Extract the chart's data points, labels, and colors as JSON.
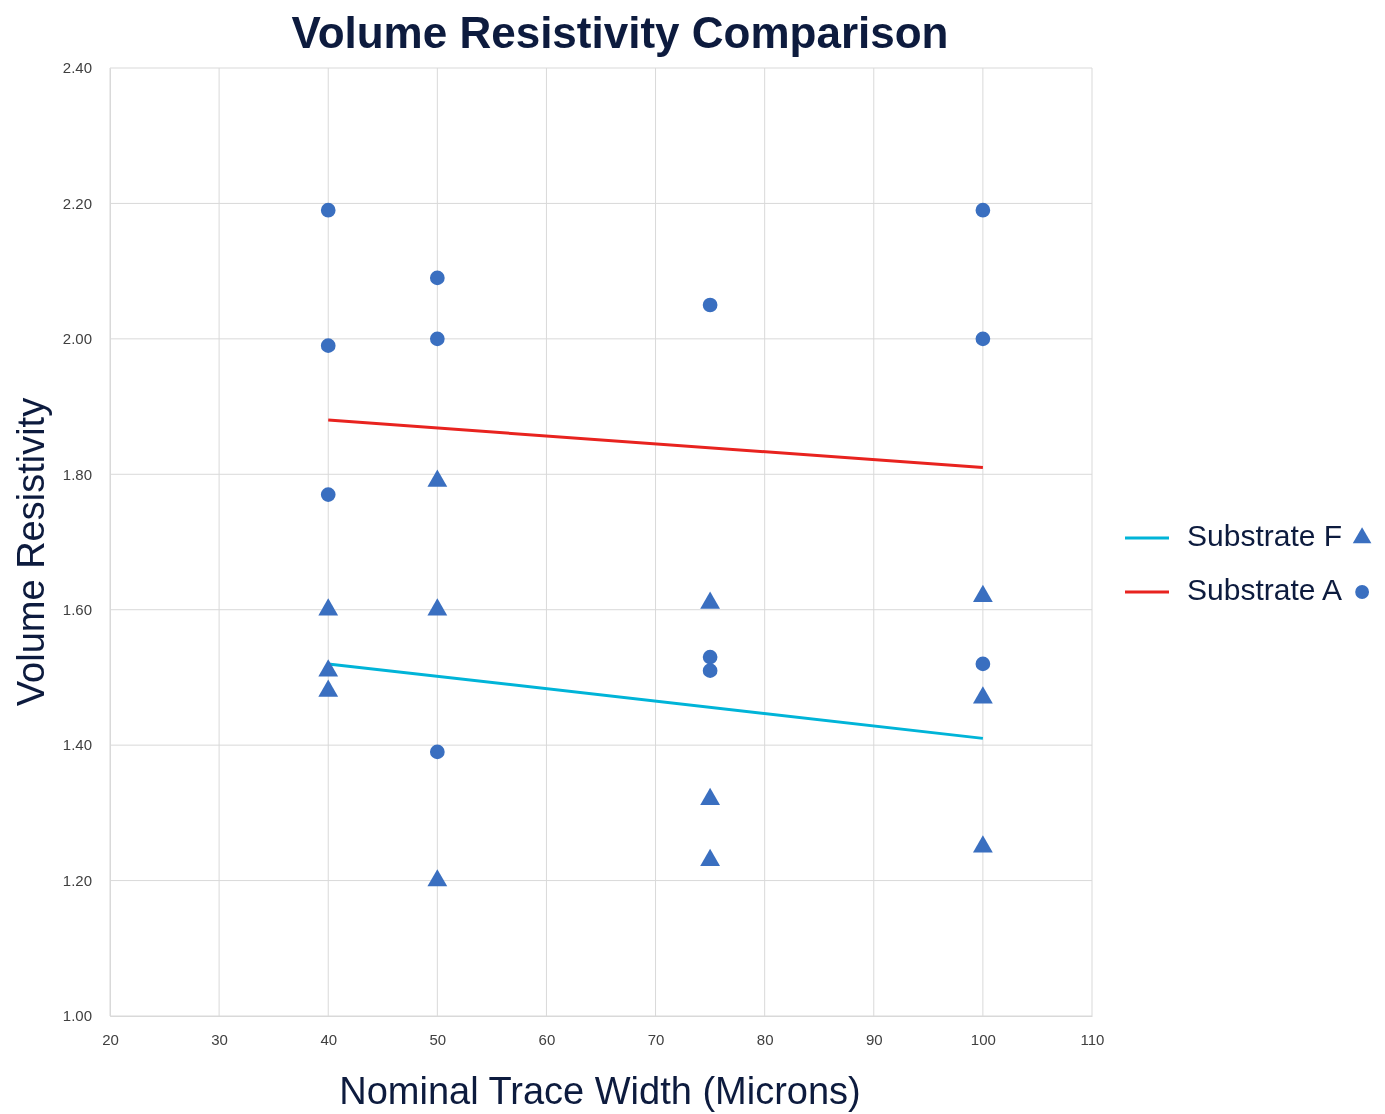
{
  "chart_data": {
    "type": "scatter",
    "title": "Volume Resistivity Comparison",
    "xlabel": "Nominal Trace Width (Microns)",
    "ylabel": "Volume Resistivity",
    "xlim": [
      20,
      110
    ],
    "xticks": [
      20,
      30,
      40,
      50,
      60,
      70,
      80,
      90,
      100,
      110
    ],
    "ylim": [
      1,
      2.4
    ],
    "yticks": [
      {
        "value": 1,
        "label": "1.00"
      },
      {
        "value": 1.2,
        "label": "1.20"
      },
      {
        "value": 1.4,
        "label": "1.40"
      },
      {
        "value": 1.6,
        "label": "1.60"
      },
      {
        "value": 1.8,
        "label": "1.80"
      },
      {
        "value": 2,
        "label": "2.00"
      },
      {
        "value": 2.2,
        "label": "2.20"
      },
      {
        "value": 2.4,
        "label": "2.40"
      }
    ],
    "grid": true,
    "legend": "right",
    "series": [
      {
        "name": "Substrate F",
        "type": "line",
        "color": "#00b4d8",
        "x": [
          40,
          100
        ],
        "values": [
          1.52,
          1.41
        ]
      },
      {
        "marker": "triangle",
        "color": "#3a6fc0",
        "x": [
          40,
          40,
          40,
          50,
          50,
          50,
          75,
          75,
          75,
          100,
          100,
          100
        ],
        "values": [
          1.6,
          1.51,
          1.48,
          1.79,
          1.6,
          1.2,
          1.61,
          1.32,
          1.23,
          1.62,
          1.47,
          1.25
        ]
      },
      {
        "name": "Substrate A",
        "type": "line",
        "color": "#e8231f",
        "x": [
          40,
          100
        ],
        "values": [
          1.88,
          1.81
        ]
      },
      {
        "marker": "circle",
        "color": "#3a6fc0",
        "x": [
          40,
          40,
          40,
          50,
          50,
          50,
          75,
          75,
          75,
          100,
          100,
          100
        ],
        "values": [
          2.19,
          1.99,
          1.77,
          2.09,
          2,
          1.39,
          2.05,
          1.53,
          1.51,
          2.19,
          2,
          1.52
        ]
      }
    ]
  }
}
